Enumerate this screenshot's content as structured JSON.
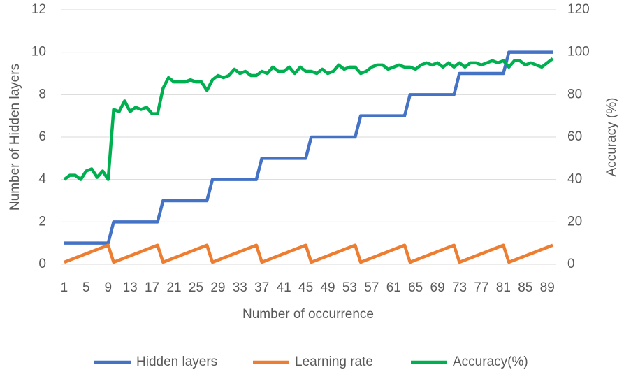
{
  "chart_data": {
    "type": "line",
    "xlabel": "Number of occurrence",
    "ylabel": "Number of Hidden layers",
    "y2label": "Accuracy (%)",
    "categories": [
      "1",
      null,
      null,
      null,
      "5",
      null,
      null,
      null,
      "9",
      null,
      null,
      null,
      "13",
      null,
      null,
      null,
      "17",
      null,
      null,
      null,
      "21",
      null,
      null,
      null,
      "25",
      null,
      null,
      null,
      "29",
      null,
      null,
      null,
      "33",
      null,
      null,
      null,
      "37",
      null,
      null,
      null,
      "41",
      null,
      null,
      null,
      "45",
      null,
      null,
      null,
      "49",
      null,
      null,
      null,
      "53",
      null,
      null,
      null,
      "57",
      null,
      null,
      null,
      "61",
      null,
      null,
      null,
      "65",
      null,
      null,
      null,
      "69",
      null,
      null,
      null,
      "73",
      null,
      null,
      null,
      "77",
      null,
      null,
      null,
      "81",
      null,
      null,
      null,
      "85",
      null,
      null,
      null,
      "89",
      null
    ],
    "series": [
      {
        "name": "Hidden layers",
        "color": "#4472c4",
        "values": [
          1,
          1,
          1,
          1,
          1,
          1,
          1,
          1,
          1,
          2,
          2,
          2,
          2,
          2,
          2,
          2,
          2,
          2,
          3,
          3,
          3,
          3,
          3,
          3,
          3,
          3,
          3,
          4,
          4,
          4,
          4,
          4,
          4,
          4,
          4,
          4,
          5,
          5,
          5,
          5,
          5,
          5,
          5,
          5,
          5,
          6,
          6,
          6,
          6,
          6,
          6,
          6,
          6,
          6,
          7,
          7,
          7,
          7,
          7,
          7,
          7,
          7,
          7,
          8,
          8,
          8,
          8,
          8,
          8,
          8,
          8,
          8,
          9,
          9,
          9,
          9,
          9,
          9,
          9,
          9,
          9,
          10,
          10,
          10,
          10,
          10,
          10,
          10,
          10,
          10
        ]
      },
      {
        "name": "Learning rate",
        "color": "#ed7d31",
        "values": [
          0.1,
          0.2,
          0.3,
          0.4,
          0.5,
          0.6,
          0.7,
          0.8,
          0.9,
          0.1,
          0.2,
          0.3,
          0.4,
          0.5,
          0.6,
          0.7,
          0.8,
          0.9,
          0.1,
          0.2,
          0.3,
          0.4,
          0.5,
          0.6,
          0.7,
          0.8,
          0.9,
          0.1,
          0.2,
          0.3,
          0.4,
          0.5,
          0.6,
          0.7,
          0.8,
          0.9,
          0.1,
          0.2,
          0.3,
          0.4,
          0.5,
          0.6,
          0.7,
          0.8,
          0.9,
          0.1,
          0.2,
          0.3,
          0.4,
          0.5,
          0.6,
          0.7,
          0.8,
          0.9,
          0.1,
          0.2,
          0.3,
          0.4,
          0.5,
          0.6,
          0.7,
          0.8,
          0.9,
          0.1,
          0.2,
          0.3,
          0.4,
          0.5,
          0.6,
          0.7,
          0.8,
          0.9,
          0.1,
          0.2,
          0.3,
          0.4,
          0.5,
          0.6,
          0.7,
          0.8,
          0.9,
          0.1,
          0.2,
          0.3,
          0.4,
          0.5,
          0.6,
          0.7,
          0.8,
          0.9
        ]
      },
      {
        "name": "Accuracy(%)",
        "color": "#00b050",
        "axis": "y2",
        "values": [
          40,
          42,
          42,
          40,
          44,
          45,
          41,
          44,
          40,
          73,
          72,
          77,
          72,
          74,
          73,
          74,
          71,
          71,
          83,
          88,
          86,
          86,
          86,
          87,
          86,
          86,
          82,
          87,
          89,
          88,
          89,
          92,
          90,
          91,
          89,
          89,
          91,
          90,
          93,
          91,
          91,
          93,
          90,
          93,
          91,
          91,
          90,
          92,
          90,
          91,
          94,
          92,
          93,
          93,
          90,
          91,
          93,
          94,
          94,
          92,
          93,
          94,
          93,
          93,
          92,
          94,
          95,
          94,
          95,
          93,
          95,
          93,
          95,
          93,
          95,
          95,
          94,
          95,
          96,
          95,
          96,
          93,
          96,
          96,
          94,
          95,
          94,
          93,
          95,
          97
        ]
      }
    ],
    "ylim": [
      0,
      12
    ],
    "yticks": [
      0,
      2,
      4,
      6,
      8,
      10,
      12
    ],
    "y2lim": [
      0,
      120
    ],
    "y2ticks": [
      0,
      20,
      40,
      60,
      80,
      100,
      120
    ],
    "grid": true,
    "legend": "bottom"
  }
}
